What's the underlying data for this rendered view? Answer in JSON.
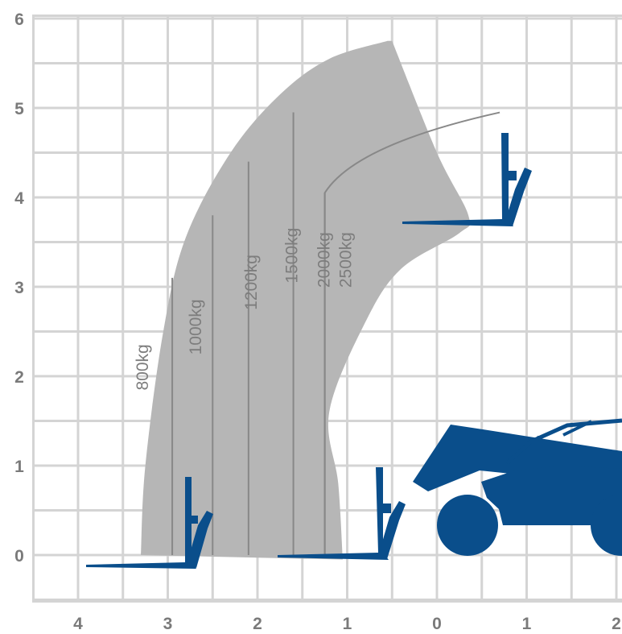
{
  "chart_data": {
    "type": "area",
    "title": "",
    "xlabel": "",
    "ylabel": "",
    "x_ticks": [
      "4",
      "3",
      "2",
      "1",
      "0",
      "1",
      "2"
    ],
    "y_ticks": [
      "0",
      "1",
      "2",
      "3",
      "4",
      "5",
      "6"
    ],
    "xlim": [
      4.5,
      -2.0
    ],
    "ylim": [
      -0.5,
      6.2
    ],
    "grid": true,
    "grid_step": 0.5,
    "envelope": {
      "outer": [
        [
          3.3,
          0.0
        ],
        [
          3.25,
          1.0
        ],
        [
          3.05,
          2.5
        ],
        [
          2.8,
          3.55
        ],
        [
          2.3,
          4.5
        ],
        [
          1.75,
          5.15
        ],
        [
          1.2,
          5.55
        ],
        [
          0.55,
          5.75
        ]
      ],
      "inner": [
        [
          1.05,
          -0.05
        ],
        [
          1.1,
          0.8
        ],
        [
          1.2,
          1.6
        ],
        [
          0.8,
          2.6
        ],
        [
          0.4,
          3.2
        ],
        [
          -0.25,
          3.6
        ],
        [
          -0.35,
          3.8
        ],
        [
          0.0,
          4.5
        ],
        [
          0.5,
          5.75
        ]
      ]
    },
    "series": [
      {
        "name": "800kg",
        "reach": 2.95,
        "max_height": 3.1
      },
      {
        "name": "1000kg",
        "reach": 2.5,
        "max_height": 3.8
      },
      {
        "name": "1200kg",
        "reach": 2.1,
        "max_height": 4.4
      },
      {
        "name": "1500kg",
        "reach": 1.6,
        "max_height": 4.95
      },
      {
        "name": "2000kg",
        "reach": 1.25,
        "max_height": 4.05
      },
      {
        "name": "2500kg",
        "reach": 1.25,
        "max_height": 4.05
      }
    ],
    "colors": {
      "envelope": "#b6b6b6",
      "capacity_line": "#888888",
      "grid": "#d4d4d4",
      "machine": "#0a4e8b",
      "tick_text": "#7a7a7a"
    }
  }
}
